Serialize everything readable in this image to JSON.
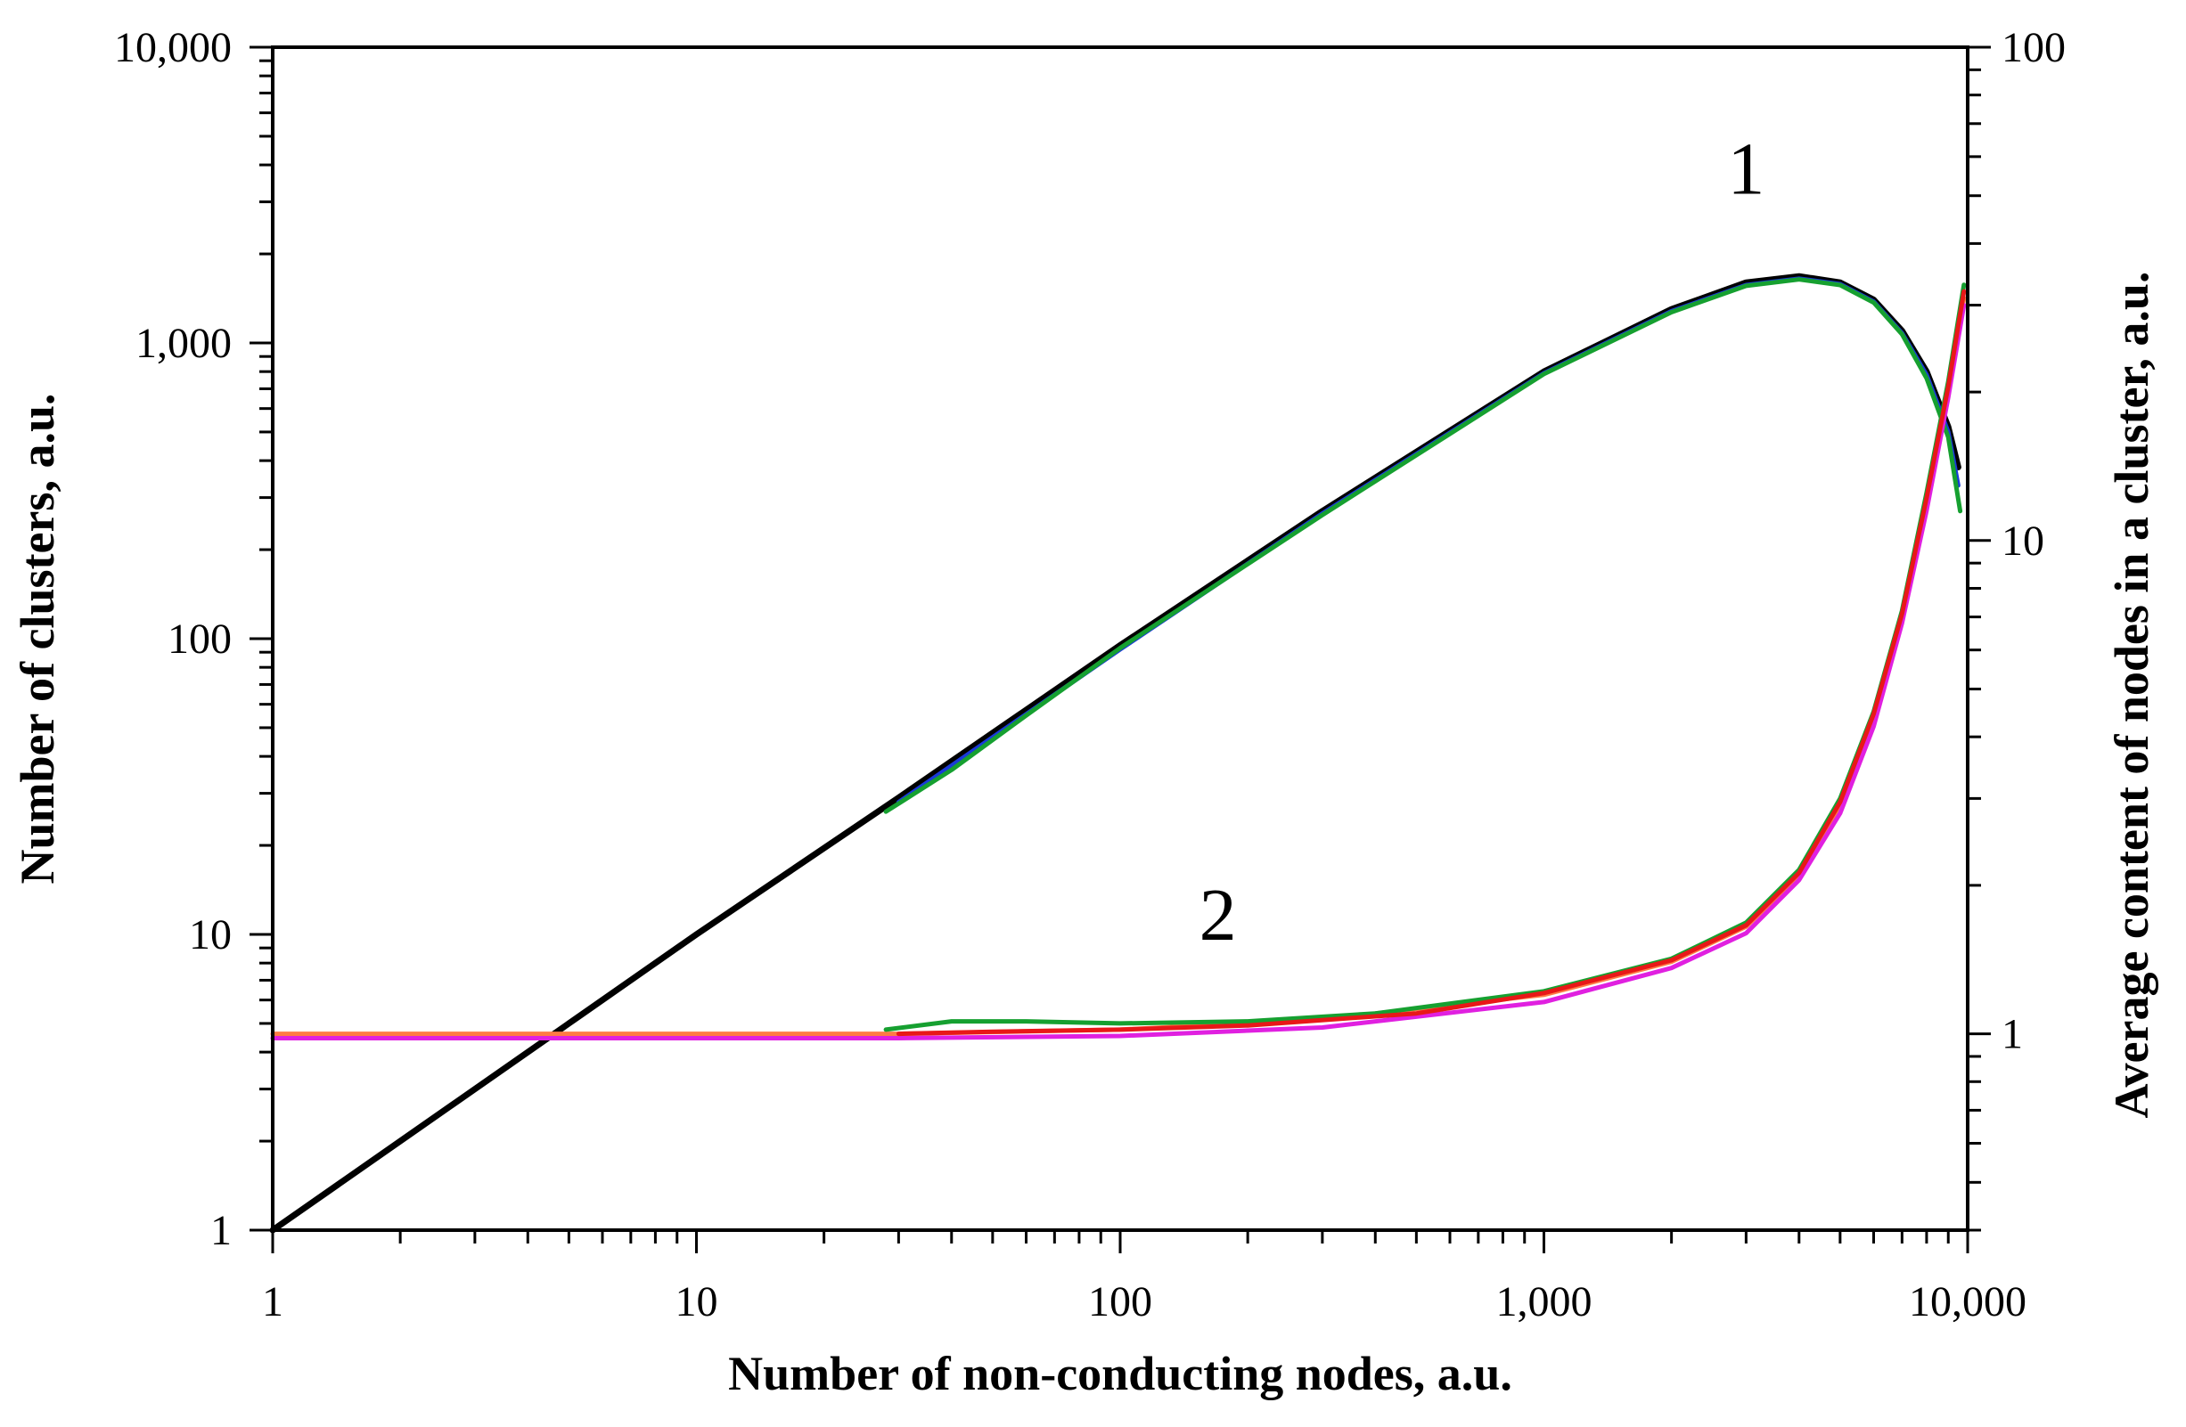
{
  "chart_data": {
    "type": "line",
    "scale": "log-log",
    "title": "",
    "xlabel": "Number of non-conducting nodes, a.u.",
    "ylabel": "Number of clusters, a.u.",
    "y2label": "Average content of  nodes in a cluster, a.u.",
    "xlim": [
      1,
      10000
    ],
    "ylim": [
      1,
      10000
    ],
    "y2lim": [
      0.4,
      100
    ],
    "x_ticks": [
      "1",
      "10",
      "100",
      "1,000",
      "10,000"
    ],
    "y_ticks": [
      "1",
      "10",
      "100",
      "1,000",
      "10,000"
    ],
    "y2_ticks": [
      "1",
      "10",
      "100"
    ],
    "annotations": [
      {
        "text": "1",
        "x": 3000,
        "y": 3200,
        "axis": "left"
      },
      {
        "text": "2",
        "x": 170,
        "y": 1.55,
        "axis": "right"
      }
    ],
    "series": [
      {
        "name": "1",
        "axis": "left",
        "color": "#000000",
        "x": [
          1,
          10,
          30,
          100,
          300,
          1000,
          2000,
          3000,
          4000,
          5000,
          6000,
          7000,
          8000,
          9000,
          9500
        ],
        "y": [
          1,
          10,
          29,
          95,
          270,
          800,
          1300,
          1600,
          1680,
          1600,
          1400,
          1100,
          800,
          520,
          380
        ]
      },
      {
        "name": "1",
        "axis": "left",
        "color": "#1a3ad8",
        "x": [
          30,
          100,
          300,
          1000,
          2000,
          3000,
          4000,
          5000,
          6000,
          7000,
          8000,
          9000,
          9500
        ],
        "y": [
          28,
          92,
          265,
          790,
          1280,
          1570,
          1650,
          1580,
          1380,
          1080,
          780,
          500,
          330
        ]
      },
      {
        "name": "1",
        "axis": "left",
        "color": "#16a030",
        "x": [
          28,
          40,
          60,
          100,
          300,
          1000,
          2000,
          3000,
          4000,
          5000,
          6000,
          7000,
          8000,
          9000,
          9600
        ],
        "y": [
          26,
          36,
          55,
          93,
          262,
          785,
          1270,
          1560,
          1640,
          1570,
          1370,
          1070,
          760,
          480,
          270
        ]
      },
      {
        "name": "2",
        "axis": "right",
        "color": "#ff7b45",
        "x": [
          1,
          10,
          30,
          100,
          300,
          1000,
          2000,
          3000,
          4000,
          5000,
          6000,
          7000,
          8000,
          9000,
          9800
        ],
        "y": [
          1.0,
          1.0,
          1.0,
          1.02,
          1.07,
          1.2,
          1.4,
          1.65,
          2.1,
          2.9,
          4.4,
          7.0,
          12,
          20,
          31
        ]
      },
      {
        "name": "2",
        "axis": "right",
        "color": "#e020e0",
        "x": [
          1,
          10,
          30,
          100,
          300,
          1000,
          2000,
          3000,
          4000,
          5000,
          6000,
          7000,
          8000,
          9000,
          9800
        ],
        "y": [
          0.98,
          0.98,
          0.98,
          0.99,
          1.03,
          1.16,
          1.36,
          1.6,
          2.05,
          2.8,
          4.2,
          6.8,
          11.5,
          19.5,
          30
        ]
      },
      {
        "name": "2",
        "axis": "right",
        "color": "#16a030",
        "x": [
          28,
          40,
          60,
          100,
          200,
          400,
          1000,
          2000,
          3000,
          4000,
          5000,
          6000,
          7000,
          8000,
          9000,
          9800
        ],
        "y": [
          1.02,
          1.06,
          1.06,
          1.05,
          1.06,
          1.1,
          1.22,
          1.42,
          1.68,
          2.15,
          3.0,
          4.5,
          7.2,
          12.5,
          21,
          33
        ]
      },
      {
        "name": "2",
        "axis": "right",
        "color": "#e81818",
        "x": [
          30,
          50,
          100,
          200,
          500,
          1000,
          2000,
          3000,
          4000,
          5000,
          6000,
          7000,
          8000,
          9000,
          9800
        ],
        "y": [
          1.0,
          1.01,
          1.02,
          1.04,
          1.1,
          1.21,
          1.41,
          1.66,
          2.12,
          2.95,
          4.45,
          7.1,
          12.2,
          20.5,
          32
        ]
      }
    ]
  }
}
